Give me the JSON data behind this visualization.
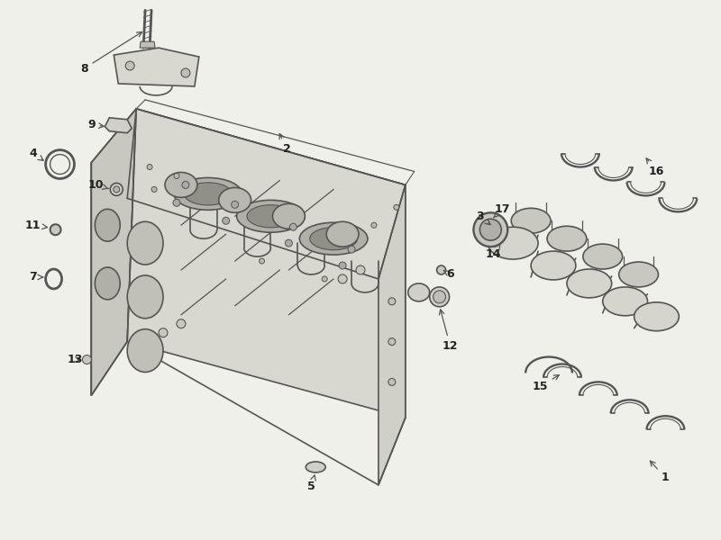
{
  "background_color": "#f0f0eb",
  "line_color": "#555555",
  "text_color": "#222222",
  "figsize": [
    8.0,
    6.0
  ],
  "dpi": 100,
  "label_data": [
    [
      "1",
      740,
      68,
      720,
      90
    ],
    [
      "2",
      318,
      435,
      308,
      456
    ],
    [
      "3",
      533,
      360,
      548,
      348
    ],
    [
      "4",
      35,
      430,
      50,
      420
    ],
    [
      "5",
      345,
      58,
      350,
      75
    ],
    [
      "6",
      500,
      295,
      492,
      300
    ],
    [
      "7",
      35,
      292,
      50,
      292
    ],
    [
      "8",
      92,
      525,
      160,
      568
    ],
    [
      "9",
      100,
      462,
      118,
      460
    ],
    [
      "10",
      105,
      395,
      122,
      390
    ],
    [
      "11",
      35,
      350,
      55,
      347
    ],
    [
      "12",
      500,
      215,
      488,
      260
    ],
    [
      "13",
      82,
      200,
      92,
      200
    ],
    [
      "14",
      548,
      318,
      558,
      332
    ],
    [
      "15",
      600,
      170,
      625,
      185
    ],
    [
      "16",
      730,
      410,
      716,
      428
    ],
    [
      "17",
      558,
      368,
      548,
      358
    ]
  ]
}
